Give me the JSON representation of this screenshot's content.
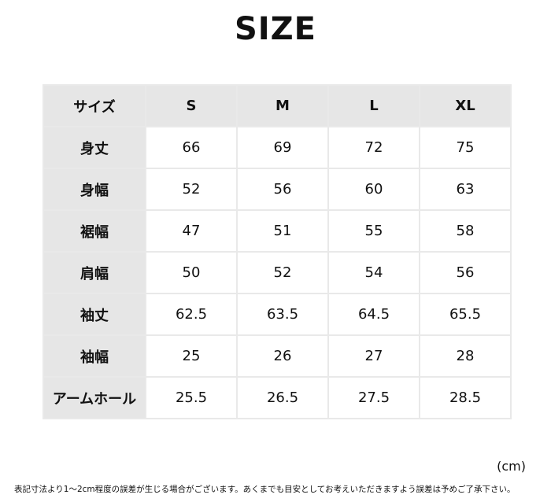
{
  "title": "SIZE",
  "table": {
    "header": [
      "サイズ",
      "S",
      "M",
      "L",
      "XL"
    ],
    "rows": [
      {
        "label": "身丈",
        "values": [
          "66",
          "69",
          "72",
          "75"
        ]
      },
      {
        "label": "身幅",
        "values": [
          "52",
          "56",
          "60",
          "63"
        ]
      },
      {
        "label": "裾幅",
        "values": [
          "47",
          "51",
          "55",
          "58"
        ]
      },
      {
        "label": "肩幅",
        "values": [
          "50",
          "52",
          "54",
          "56"
        ]
      },
      {
        "label": "袖丈",
        "values": [
          "62.5",
          "63.5",
          "64.5",
          "65.5"
        ]
      },
      {
        "label": "袖幅",
        "values": [
          "25",
          "26",
          "27",
          "28"
        ]
      },
      {
        "label": "アームホール",
        "values": [
          "25.5",
          "26.5",
          "27.5",
          "28.5"
        ]
      }
    ]
  },
  "unit": "(cm)",
  "note": "表記寸法より1～2cm程度の誤差が生じる場合がございます。あくまでも目安としてお考えいただきますよう誤差は予めご了承下さい。"
}
